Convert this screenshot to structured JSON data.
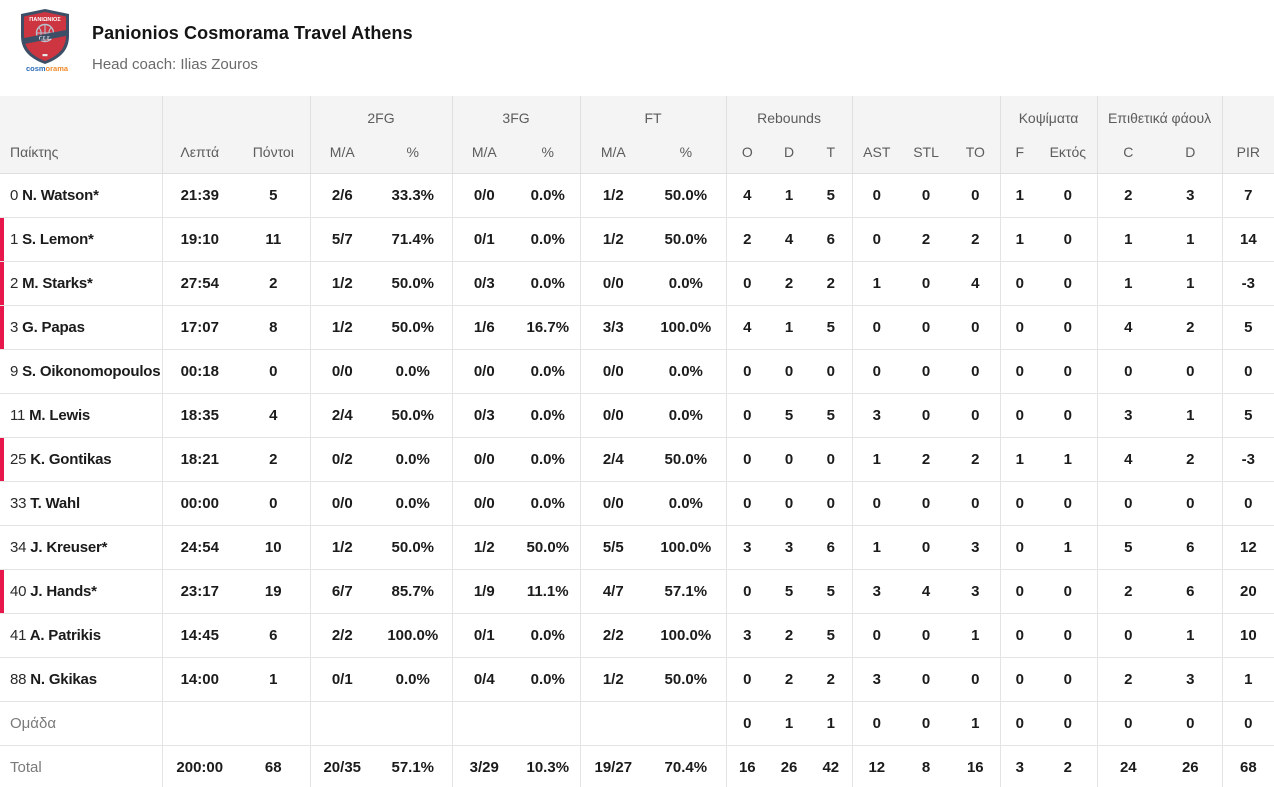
{
  "header": {
    "title": "Panionios Cosmorama Travel Athens",
    "coach_line": "Head coach: Ilias Zouros",
    "logo": {
      "team_text": "ΠΑΝΙΩΝΙΟΣ",
      "band_text": "Γ.Σ.Σ.",
      "brand_part1": "cosm",
      "brand_part2": "o",
      "brand_part3": "rama"
    }
  },
  "colors": {
    "accent_red": "#e8174b",
    "header_bg": "#f4f4f4",
    "shield_navy": "#3d4f66",
    "shield_red": "#cd3540"
  },
  "table": {
    "group_headers": {
      "fg2": "2FG",
      "fg3": "3FG",
      "ft": "FT",
      "rebounds": "Rebounds",
      "blocks": "Κοψίματα",
      "fouls": "Επιθετικά φάουλ"
    },
    "columns": {
      "player": "Παίκτης",
      "min": "Λεπτά",
      "pts": "Πόντοι",
      "ma": "M/A",
      "pct": "%",
      "o": "O",
      "d": "D",
      "t": "T",
      "ast": "AST",
      "stl": "STL",
      "to": "TO",
      "f": "F",
      "ektos": "Εκτός",
      "c": "C",
      "d2": "D",
      "pir": "PIR"
    },
    "rows": [
      {
        "type": "player",
        "num": "0",
        "name": "N. Watson",
        "starter": true,
        "oncourt": false,
        "stats": [
          "21:39",
          "5",
          "2/6",
          "33.3%",
          "0/0",
          "0.0%",
          "1/2",
          "50.0%",
          "4",
          "1",
          "5",
          "0",
          "0",
          "0",
          "1",
          "0",
          "2",
          "3",
          "7"
        ]
      },
      {
        "type": "player",
        "num": "1",
        "name": "S. Lemon",
        "starter": true,
        "oncourt": true,
        "stats": [
          "19:10",
          "11",
          "5/7",
          "71.4%",
          "0/1",
          "0.0%",
          "1/2",
          "50.0%",
          "2",
          "4",
          "6",
          "0",
          "2",
          "2",
          "1",
          "0",
          "1",
          "1",
          "14"
        ]
      },
      {
        "type": "player",
        "num": "2",
        "name": "M. Starks",
        "starter": true,
        "oncourt": true,
        "stats": [
          "27:54",
          "2",
          "1/2",
          "50.0%",
          "0/3",
          "0.0%",
          "0/0",
          "0.0%",
          "0",
          "2",
          "2",
          "1",
          "0",
          "4",
          "0",
          "0",
          "1",
          "1",
          "-3"
        ]
      },
      {
        "type": "player",
        "num": "3",
        "name": "G. Papas",
        "starter": false,
        "oncourt": true,
        "stats": [
          "17:07",
          "8",
          "1/2",
          "50.0%",
          "1/6",
          "16.7%",
          "3/3",
          "100.0%",
          "4",
          "1",
          "5",
          "0",
          "0",
          "0",
          "0",
          "0",
          "4",
          "2",
          "5"
        ]
      },
      {
        "type": "player",
        "num": "9",
        "name": "S. Oikonomopoulos",
        "starter": false,
        "oncourt": false,
        "stats": [
          "00:18",
          "0",
          "0/0",
          "0.0%",
          "0/0",
          "0.0%",
          "0/0",
          "0.0%",
          "0",
          "0",
          "0",
          "0",
          "0",
          "0",
          "0",
          "0",
          "0",
          "0",
          "0"
        ]
      },
      {
        "type": "player",
        "num": "11",
        "name": "M. Lewis",
        "starter": false,
        "oncourt": false,
        "stats": [
          "18:35",
          "4",
          "2/4",
          "50.0%",
          "0/3",
          "0.0%",
          "0/0",
          "0.0%",
          "0",
          "5",
          "5",
          "3",
          "0",
          "0",
          "0",
          "0",
          "3",
          "1",
          "5"
        ]
      },
      {
        "type": "player",
        "num": "25",
        "name": "K. Gontikas",
        "starter": false,
        "oncourt": true,
        "stats": [
          "18:21",
          "2",
          "0/2",
          "0.0%",
          "0/0",
          "0.0%",
          "2/4",
          "50.0%",
          "0",
          "0",
          "0",
          "1",
          "2",
          "2",
          "1",
          "1",
          "4",
          "2",
          "-3"
        ]
      },
      {
        "type": "player",
        "num": "33",
        "name": "T. Wahl",
        "starter": false,
        "oncourt": false,
        "stats": [
          "00:00",
          "0",
          "0/0",
          "0.0%",
          "0/0",
          "0.0%",
          "0/0",
          "0.0%",
          "0",
          "0",
          "0",
          "0",
          "0",
          "0",
          "0",
          "0",
          "0",
          "0",
          "0"
        ]
      },
      {
        "type": "player",
        "num": "34",
        "name": "J. Kreuser",
        "starter": true,
        "oncourt": false,
        "stats": [
          "24:54",
          "10",
          "1/2",
          "50.0%",
          "1/2",
          "50.0%",
          "5/5",
          "100.0%",
          "3",
          "3",
          "6",
          "1",
          "0",
          "3",
          "0",
          "1",
          "5",
          "6",
          "12"
        ]
      },
      {
        "type": "player",
        "num": "40",
        "name": "J. Hands",
        "starter": true,
        "oncourt": true,
        "stats": [
          "23:17",
          "19",
          "6/7",
          "85.7%",
          "1/9",
          "11.1%",
          "4/7",
          "57.1%",
          "0",
          "5",
          "5",
          "3",
          "4",
          "3",
          "0",
          "0",
          "2",
          "6",
          "20"
        ]
      },
      {
        "type": "player",
        "num": "41",
        "name": "A. Patrikis",
        "starter": false,
        "oncourt": false,
        "stats": [
          "14:45",
          "6",
          "2/2",
          "100.0%",
          "0/1",
          "0.0%",
          "2/2",
          "100.0%",
          "3",
          "2",
          "5",
          "0",
          "0",
          "1",
          "0",
          "0",
          "0",
          "1",
          "10"
        ]
      },
      {
        "type": "player",
        "num": "88",
        "name": "N. Gkikas",
        "starter": false,
        "oncourt": false,
        "stats": [
          "14:00",
          "1",
          "0/1",
          "0.0%",
          "0/4",
          "0.0%",
          "1/2",
          "50.0%",
          "0",
          "2",
          "2",
          "3",
          "0",
          "0",
          "0",
          "0",
          "2",
          "3",
          "1"
        ]
      },
      {
        "type": "summary",
        "name": "Ομάδα",
        "stats": [
          "",
          "",
          "",
          "",
          "",
          "",
          "",
          "",
          "0",
          "1",
          "1",
          "0",
          "0",
          "1",
          "0",
          "0",
          "0",
          "0",
          "0"
        ]
      },
      {
        "type": "summary",
        "name": "Total",
        "stats": [
          "200:00",
          "68",
          "20/35",
          "57.1%",
          "3/29",
          "10.3%",
          "19/27",
          "70.4%",
          "16",
          "26",
          "42",
          "12",
          "8",
          "16",
          "3",
          "2",
          "24",
          "26",
          "68"
        ]
      }
    ]
  }
}
